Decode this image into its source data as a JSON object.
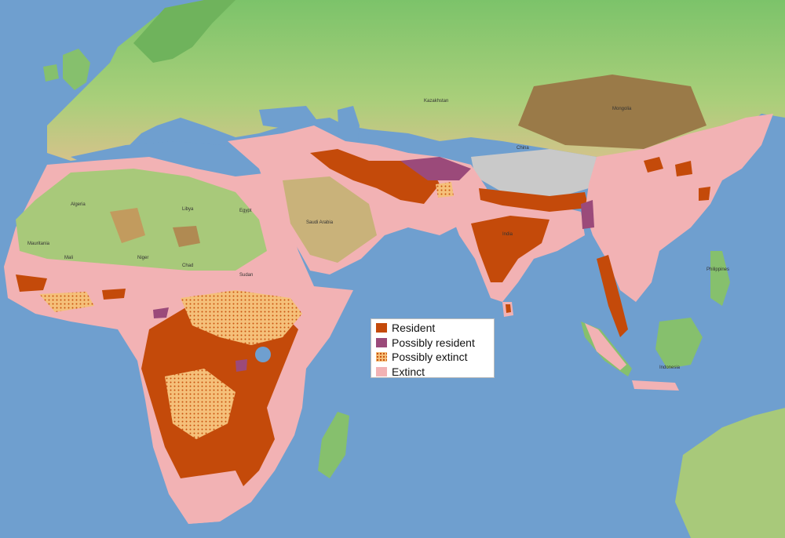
{
  "map": {
    "colors": {
      "ocean": "#6f9fcf",
      "ocean_deep": "#5e90c4",
      "land_low": "#7cc36a",
      "land_high": "#c8b27a",
      "mountain": "#8a6a3a",
      "snow": "#cfcfcf",
      "extinct": "#f2b2b4",
      "resident": "#c44a0a",
      "possibly_resident": "#9b4a7a",
      "possibly_extinct": "#f5c07a"
    },
    "country_labels": [
      "Algeria",
      "Libya",
      "Egypt",
      "Mauritania",
      "Mali",
      "Niger",
      "Chad",
      "Sudan",
      "Saudi Arabia",
      "Kazakhstan",
      "Mongolia",
      "China",
      "India",
      "Indonesia",
      "Philippines"
    ]
  },
  "legend": {
    "items": [
      {
        "label": "Resident",
        "color": "#c44a0a"
      },
      {
        "label": "Possibly resident",
        "color": "#9b4a7a"
      },
      {
        "label": "Possibly extinct",
        "color": "#f5c07a",
        "pattern": "dots"
      },
      {
        "label": "Extinct",
        "color": "#f2b2b4"
      }
    ]
  }
}
